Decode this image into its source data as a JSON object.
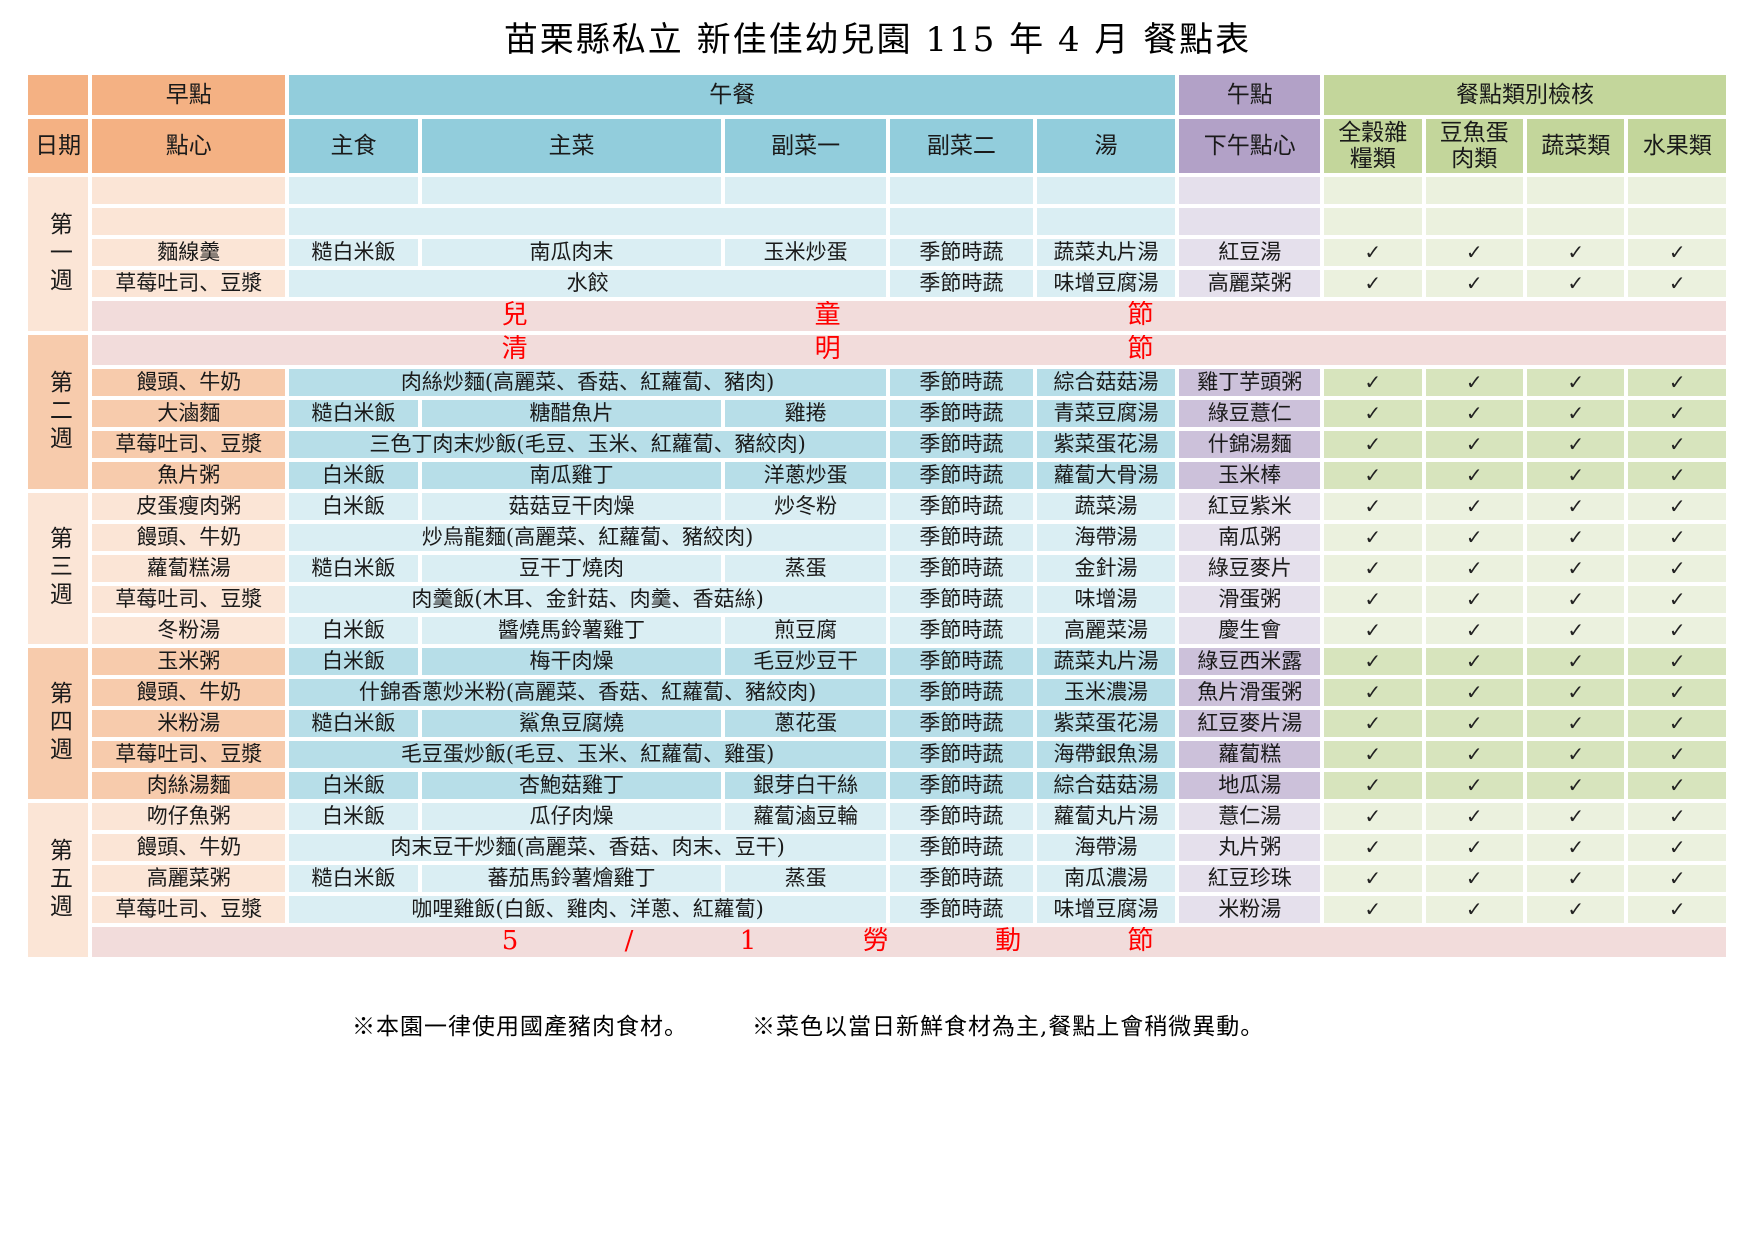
{
  "title": "苗栗縣私立 新佳佳幼兒園  115 年 4 月 餐點表",
  "check_mark": "✓",
  "colors": {
    "orange_header": "#F4B183",
    "orange_light": "#FBE5D6",
    "orange_dark": "#F7CBAC",
    "blue_header": "#92CDDC",
    "blue_light": "#DAEEF3",
    "blue_dark": "#B7DEE8",
    "purple_header": "#B2A1C7",
    "purple_light": "#E5E0EC",
    "purple_dark": "#CCC1DA",
    "green_header": "#C3D69B",
    "green_light": "#EBF1DE",
    "green_dark": "#D7E4BD",
    "holiday_bg": "#F2DCDB",
    "holiday_text": "#FF0000"
  },
  "header": {
    "date": "日期",
    "morning": "早點",
    "snack": "點心",
    "lunch": "午餐",
    "staple": "主食",
    "main": "主菜",
    "side1": "副菜一",
    "side2": "副菜二",
    "soup": "湯",
    "afternoon": "午點",
    "pm_snack": "下午點心",
    "check_group": "餐點類別檢核",
    "cat1": "全穀雜\n糧類",
    "cat2": "豆魚蛋\n肉類",
    "cat3": "蔬菜類",
    "cat4": "水果類"
  },
  "weeks": [
    {
      "label": "第一週",
      "shade": "light",
      "rows": [
        {
          "type": "meal",
          "snack": "",
          "merged": false,
          "staple": "",
          "dish": "",
          "side1": "",
          "side2": "",
          "soup": "",
          "pm": "",
          "checks": false
        },
        {
          "type": "meal",
          "snack": "",
          "merged": true,
          "dish": "",
          "side2": "",
          "soup": "",
          "pm": "",
          "checks": false
        },
        {
          "type": "meal",
          "snack": "麵線羹",
          "merged": false,
          "staple": "糙白米飯",
          "dish": "南瓜肉末",
          "side1": "玉米炒蛋",
          "side2": "季節時蔬",
          "soup": "蔬菜丸片湯",
          "pm": "紅豆湯",
          "checks": true
        },
        {
          "type": "meal",
          "snack": "草莓吐司、豆漿",
          "merged": true,
          "dish": "水餃",
          "side2": "季節時蔬",
          "soup": "味增豆腐湯",
          "pm": "高麗菜粥",
          "checks": true
        },
        {
          "type": "holiday",
          "chars": [
            "兒",
            "童",
            "節"
          ]
        }
      ]
    },
    {
      "label": "第二週",
      "shade": "dark",
      "rows": [
        {
          "type": "holiday",
          "chars": [
            "清",
            "明",
            "節"
          ]
        },
        {
          "type": "meal",
          "snack": "饅頭、牛奶",
          "merged": true,
          "dish": "肉絲炒麵(高麗菜、香菇、紅蘿蔔、豬肉)",
          "side2": "季節時蔬",
          "soup": "綜合菇菇湯",
          "pm": "雞丁芋頭粥",
          "checks": true
        },
        {
          "type": "meal",
          "snack": "大滷麵",
          "merged": false,
          "staple": "糙白米飯",
          "dish": "糖醋魚片",
          "side1": "雞捲",
          "side2": "季節時蔬",
          "soup": "青菜豆腐湯",
          "pm": "綠豆薏仁",
          "checks": true
        },
        {
          "type": "meal",
          "snack": "草莓吐司、豆漿",
          "merged": true,
          "dish": "三色丁肉末炒飯(毛豆、玉米、紅蘿蔔、豬絞肉)",
          "side2": "季節時蔬",
          "soup": "紫菜蛋花湯",
          "pm": "什錦湯麵",
          "checks": true
        },
        {
          "type": "meal",
          "snack": "魚片粥",
          "merged": false,
          "staple": "白米飯",
          "dish": "南瓜雞丁",
          "side1": "洋蔥炒蛋",
          "side2": "季節時蔬",
          "soup": "蘿蔔大骨湯",
          "pm": "玉米棒",
          "checks": true
        }
      ]
    },
    {
      "label": "第三週",
      "shade": "light",
      "rows": [
        {
          "type": "meal",
          "snack": "皮蛋瘦肉粥",
          "merged": false,
          "staple": "白米飯",
          "dish": "菇菇豆干肉燥",
          "side1": "炒冬粉",
          "side2": "季節時蔬",
          "soup": "蔬菜湯",
          "pm": "紅豆紫米",
          "checks": true
        },
        {
          "type": "meal",
          "snack": "饅頭、牛奶",
          "merged": true,
          "dish": "炒烏龍麵(高麗菜、紅蘿蔔、豬絞肉)",
          "side2": "季節時蔬",
          "soup": "海帶湯",
          "pm": "南瓜粥",
          "checks": true
        },
        {
          "type": "meal",
          "snack": "蘿蔔糕湯",
          "merged": false,
          "staple": "糙白米飯",
          "dish": "豆干丁燒肉",
          "side1": "蒸蛋",
          "side2": "季節時蔬",
          "soup": "金針湯",
          "pm": "綠豆麥片",
          "checks": true
        },
        {
          "type": "meal",
          "snack": "草莓吐司、豆漿",
          "merged": true,
          "dish": "肉羹飯(木耳、金針菇、肉羹、香菇絲)",
          "side2": "季節時蔬",
          "soup": "味增湯",
          "pm": "滑蛋粥",
          "checks": true
        },
        {
          "type": "meal",
          "snack": "冬粉湯",
          "merged": false,
          "staple": "白米飯",
          "dish": "醬燒馬鈴薯雞丁",
          "side1": "煎豆腐",
          "side2": "季節時蔬",
          "soup": "高麗菜湯",
          "pm": "慶生會",
          "checks": true
        }
      ]
    },
    {
      "label": "第四週",
      "shade": "dark",
      "rows": [
        {
          "type": "meal",
          "snack": "玉米粥",
          "merged": false,
          "staple": "白米飯",
          "dish": "梅干肉燥",
          "side1": "毛豆炒豆干",
          "side2": "季節時蔬",
          "soup": "蔬菜丸片湯",
          "pm": "綠豆西米露",
          "checks": true
        },
        {
          "type": "meal",
          "snack": "饅頭、牛奶",
          "merged": true,
          "dish": "什錦香蔥炒米粉(高麗菜、香菇、紅蘿蔔、豬絞肉)",
          "side2": "季節時蔬",
          "soup": "玉米濃湯",
          "pm": "魚片滑蛋粥",
          "checks": true
        },
        {
          "type": "meal",
          "snack": "米粉湯",
          "merged": false,
          "staple": "糙白米飯",
          "dish": "鯊魚豆腐燒",
          "side1": "蔥花蛋",
          "side2": "季節時蔬",
          "soup": "紫菜蛋花湯",
          "pm": "紅豆麥片湯",
          "checks": true
        },
        {
          "type": "meal",
          "snack": "草莓吐司、豆漿",
          "merged": true,
          "dish": "毛豆蛋炒飯(毛豆、玉米、紅蘿蔔、雞蛋)",
          "side2": "季節時蔬",
          "soup": "海帶銀魚湯",
          "pm": "蘿蔔糕",
          "checks": true
        },
        {
          "type": "meal",
          "snack": "肉絲湯麵",
          "merged": false,
          "staple": "白米飯",
          "dish": "杏鮑菇雞丁",
          "side1": "銀芽白干絲",
          "side2": "季節時蔬",
          "soup": "綜合菇菇湯",
          "pm": "地瓜湯",
          "checks": true
        }
      ]
    },
    {
      "label": "第五週",
      "shade": "light",
      "rows": [
        {
          "type": "meal",
          "snack": "吻仔魚粥",
          "merged": false,
          "staple": "白米飯",
          "dish": "瓜仔肉燥",
          "side1": "蘿蔔滷豆輪",
          "side2": "季節時蔬",
          "soup": "蘿蔔丸片湯",
          "pm": "薏仁湯",
          "checks": true
        },
        {
          "type": "meal",
          "snack": "饅頭、牛奶",
          "merged": true,
          "dish": "肉末豆干炒麵(高麗菜、香菇、肉末、豆干)",
          "side2": "季節時蔬",
          "soup": "海帶湯",
          "pm": "丸片粥",
          "checks": true
        },
        {
          "type": "meal",
          "snack": "高麗菜粥",
          "merged": false,
          "staple": "糙白米飯",
          "dish": "蕃茄馬鈴薯燴雞丁",
          "side1": "蒸蛋",
          "side2": "季節時蔬",
          "soup": "南瓜濃湯",
          "pm": "紅豆珍珠",
          "checks": true
        },
        {
          "type": "meal",
          "snack": "草莓吐司、豆漿",
          "merged": true,
          "dish": "咖哩雞飯(白飯、雞肉、洋蔥、紅蘿蔔)",
          "side2": "季節時蔬",
          "soup": "味增豆腐湯",
          "pm": "米粉湯",
          "checks": true
        },
        {
          "type": "holiday",
          "chars": [
            "5",
            "/",
            "1",
            "勞",
            "動",
            "節"
          ]
        }
      ]
    }
  ],
  "footer": {
    "note1": "※本園一律使用國產豬肉食材。",
    "note2": "※菜色以當日新鮮食材為主,餐點上會稍微異動。"
  }
}
